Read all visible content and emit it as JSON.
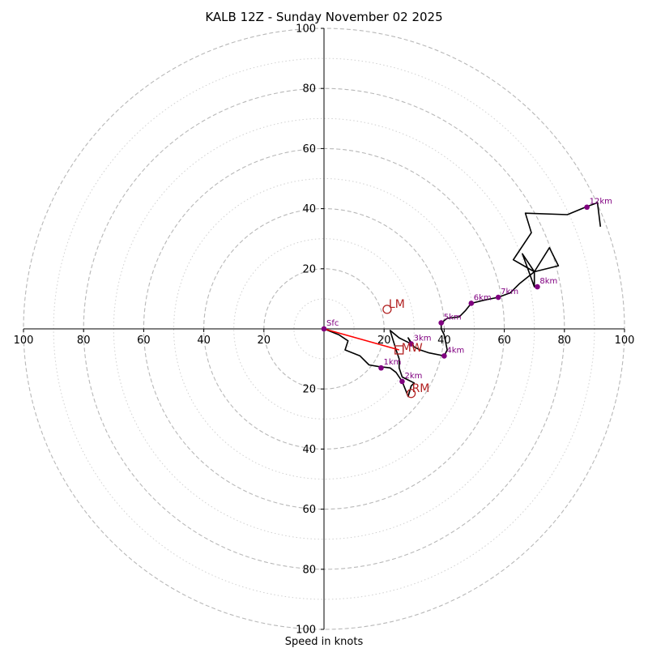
{
  "chart_data": {
    "type": "hodograph",
    "title": "KALB 12Z - Sunday November 02 2025",
    "xlabel": "Speed in knots",
    "units": "knots",
    "xlim": [
      -100,
      100
    ],
    "ylim": [
      -100,
      100
    ],
    "ring_major": [
      20,
      40,
      60,
      80,
      100
    ],
    "ring_minor": [
      10,
      30,
      50,
      70,
      90
    ],
    "tick_values": [
      100,
      80,
      60,
      40,
      20
    ],
    "hodograph_trace": [
      [
        0,
        0
      ],
      [
        5,
        -2
      ],
      [
        8,
        -4
      ],
      [
        7,
        -7
      ],
      [
        12,
        -9
      ],
      [
        15,
        -12
      ],
      [
        18,
        -12.5
      ],
      [
        22,
        -13
      ],
      [
        24,
        -14.5
      ],
      [
        26,
        -17.5
      ],
      [
        27,
        -20
      ],
      [
        28,
        -22.5
      ],
      [
        29,
        -19
      ],
      [
        30,
        -18
      ],
      [
        28,
        -17
      ],
      [
        26,
        -16
      ],
      [
        25,
        -13
      ],
      [
        25,
        -10
      ],
      [
        24,
        -7
      ],
      [
        22,
        -0.5
      ],
      [
        25,
        -3
      ],
      [
        27,
        -4
      ],
      [
        29,
        -5
      ],
      [
        28,
        -3
      ],
      [
        30,
        -6
      ],
      [
        32,
        -7
      ],
      [
        35,
        -8
      ],
      [
        40,
        -9
      ],
      [
        41,
        -7
      ],
      [
        40,
        -2
      ],
      [
        39,
        0
      ],
      [
        39,
        2
      ],
      [
        41,
        3.5
      ],
      [
        45,
        4
      ],
      [
        47,
        6
      ],
      [
        49,
        8.5
      ],
      [
        53,
        9.5
      ],
      [
        58,
        10.5
      ],
      [
        62,
        12
      ],
      [
        65,
        15
      ],
      [
        70,
        19
      ],
      [
        70,
        14
      ],
      [
        66,
        25
      ],
      [
        70,
        19
      ],
      [
        75,
        27
      ],
      [
        78,
        21
      ],
      [
        70,
        19
      ],
      [
        63,
        23
      ],
      [
        69,
        32
      ],
      [
        67,
        38.5
      ],
      [
        81,
        38
      ],
      [
        87,
        40.5
      ],
      [
        91,
        42
      ],
      [
        92,
        34
      ]
    ],
    "height_markers": [
      {
        "label": "Sfc",
        "u": 0,
        "v": 0
      },
      {
        "label": "1km",
        "u": 19,
        "v": -13
      },
      {
        "label": "2km",
        "u": 26,
        "v": -17.5
      },
      {
        "label": "3km",
        "u": 29,
        "v": -5
      },
      {
        "label": "4km",
        "u": 40,
        "v": -9
      },
      {
        "label": "5km",
        "u": 39,
        "v": 2
      },
      {
        "label": "6km",
        "u": 49,
        "v": 8.5
      },
      {
        "label": "7km",
        "u": 58,
        "v": 10.5
      },
      {
        "label": "8km",
        "u": 71,
        "v": 14
      },
      {
        "label": "12km",
        "u": 87.5,
        "v": 40.5
      }
    ],
    "storm_motion": {
      "mean_wind": {
        "label": "MW",
        "u": 25,
        "v": -7
      },
      "left_mover": {
        "label": "LM",
        "u": 21,
        "v": 6.5
      },
      "right_mover": {
        "label": "RM",
        "u": 29,
        "v": -21.5
      }
    },
    "colors": {
      "trace": "#000000",
      "marker": "#800080",
      "motion": "#b22222",
      "shear_vector": "#ff0000",
      "grid": "#b8b8b8"
    }
  }
}
